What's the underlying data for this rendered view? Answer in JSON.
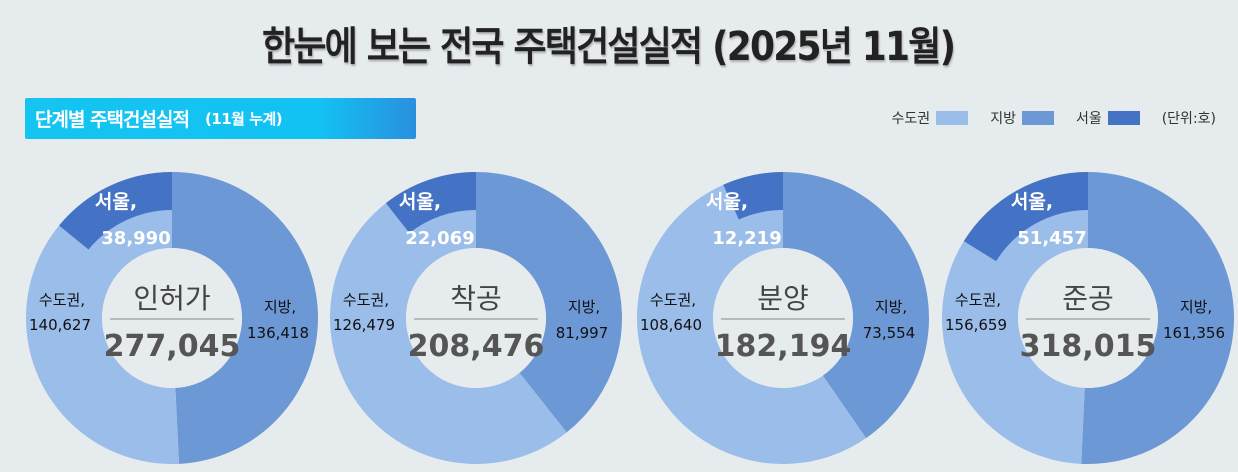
{
  "title": "한눈에 보는 전국 주택건설실적 (2025년 11월)",
  "section": {
    "label": "단계별 주택건설실적",
    "sublabel": "(11월 누계)"
  },
  "legend": {
    "items": [
      {
        "label": "수도권",
        "color": "#9bbde9"
      },
      {
        "label": "지방",
        "color": "#6d98d6"
      },
      {
        "label": "서울",
        "color": "#4472c4"
      }
    ],
    "unit": "(단위:호)"
  },
  "colors": {
    "capital_area": "#9bbde9",
    "local": "#6d98d6",
    "seoul": "#4472c4",
    "center_fill": "#e6ebee",
    "background": "#e6ebee"
  },
  "chart_data": [
    {
      "type": "pie",
      "variant": "doughnut",
      "title": "인허가",
      "total": 277045,
      "total_label": "277,045",
      "categories": [
        "수도권",
        "지방",
        "서울"
      ],
      "values": [
        140627,
        136418,
        38990
      ],
      "value_labels": [
        "140,627",
        "136,418",
        "38,990"
      ],
      "notes": "서울 is a subset of 수도권, drawn as an outer band within the 수도권 segment"
    },
    {
      "type": "pie",
      "variant": "doughnut",
      "title": "착공",
      "total": 208476,
      "total_label": "208,476",
      "categories": [
        "수도권",
        "지방",
        "서울"
      ],
      "values": [
        126479,
        81997,
        22069
      ],
      "value_labels": [
        "126,479",
        "81,997",
        "22,069"
      ]
    },
    {
      "type": "pie",
      "variant": "doughnut",
      "title": "분양",
      "total": 182194,
      "total_label": "182,194",
      "categories": [
        "수도권",
        "지방",
        "서울"
      ],
      "values": [
        108640,
        73554,
        12219
      ],
      "value_labels": [
        "108,640",
        "73,554",
        "12,219"
      ]
    },
    {
      "type": "pie",
      "variant": "doughnut",
      "title": "준공",
      "total": 318015,
      "total_label": "318,015",
      "categories": [
        "수도권",
        "지방",
        "서울"
      ],
      "values": [
        156659,
        161356,
        51457
      ],
      "value_labels": [
        "156,659",
        "161,356",
        "51,457"
      ]
    }
  ],
  "label_prefixes": {
    "capital_area": "수도권,",
    "local": "지방,",
    "seoul": "서울,"
  }
}
